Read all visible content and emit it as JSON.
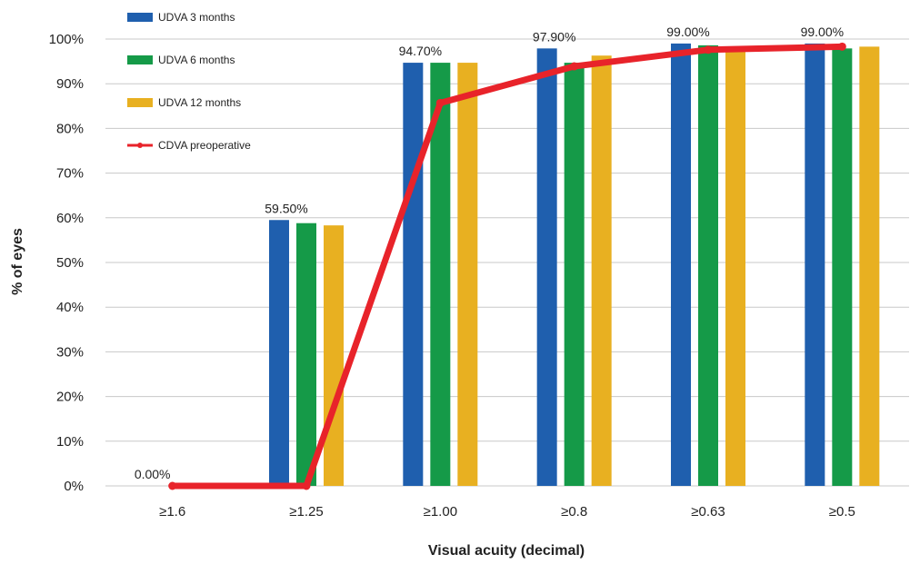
{
  "chart_data": {
    "type": "bar",
    "title": "",
    "xlabel": "Visual acuity (decimal)",
    "ylabel": "% of eyes",
    "ylim": [
      0,
      100
    ],
    "yticks": [
      "0%",
      "10%",
      "20%",
      "30%",
      "40%",
      "50%",
      "60%",
      "70%",
      "80%",
      "90%",
      "100%"
    ],
    "grid": true,
    "legend_position": "top-left",
    "categories": [
      "≥1.6",
      "≥1.25",
      "≥1.00",
      "≥0.8",
      "≥0.63",
      "≥0.5"
    ],
    "series": [
      {
        "name": "UDVA 3 months",
        "type": "bar",
        "color": "#1f5fae",
        "values": [
          0,
          59.5,
          94.7,
          97.9,
          99.0,
          99.0
        ]
      },
      {
        "name": "UDVA 6 months",
        "type": "bar",
        "color": "#159a48",
        "values": [
          0,
          58.8,
          94.7,
          94.7,
          98.6,
          97.9
        ]
      },
      {
        "name": "UDVA 12 months",
        "type": "bar",
        "color": "#e8b021",
        "values": [
          0,
          58.3,
          94.7,
          96.3,
          98.3,
          98.3
        ]
      },
      {
        "name": "CDVA preoperative",
        "type": "line",
        "color": "#e8232a",
        "values": [
          0,
          0,
          85.7,
          93.9,
          97.6,
          98.3
        ]
      }
    ],
    "data_labels": [
      {
        "category_index": 0,
        "text": "0.00%"
      },
      {
        "category_index": 1,
        "text": "59.50%"
      },
      {
        "category_index": 2,
        "text": "94.70%"
      },
      {
        "category_index": 3,
        "text": "97.90%"
      },
      {
        "category_index": 4,
        "text": "99.00%"
      },
      {
        "category_index": 5,
        "text": "99.00%"
      }
    ]
  }
}
